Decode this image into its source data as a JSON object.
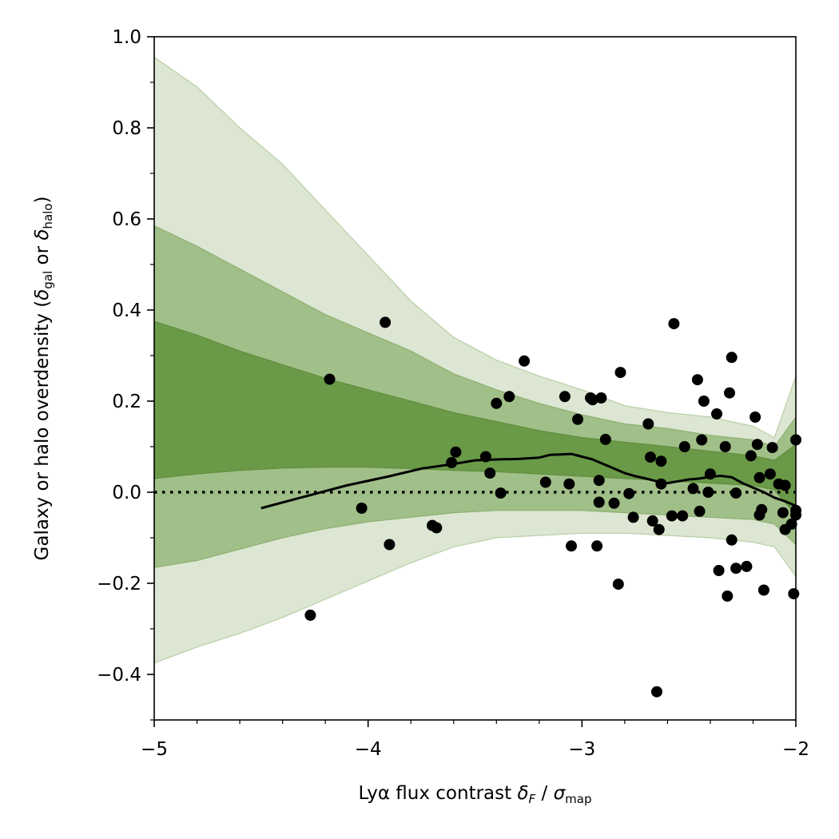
{
  "chart_data": {
    "type": "scatter",
    "xlim": [
      -5,
      -2
    ],
    "ylim": [
      -0.5,
      1.0
    ],
    "xticks": [
      -5,
      -4,
      -3,
      -2
    ],
    "xtick_labels": [
      "−5",
      "−4",
      "−3",
      "−2"
    ],
    "yticks": [
      -0.4,
      -0.2,
      0.0,
      0.2,
      0.4,
      0.6,
      0.8,
      1.0
    ],
    "ytick_labels": [
      "−0.4",
      "−0.2",
      "0.0",
      "0.2",
      "0.4",
      "0.6",
      "0.8",
      "1.0"
    ],
    "xlabel": {
      "prefix": "Lyα flux contrast ",
      "delta": "δ",
      "delta_sub": "F",
      "middle": " / ",
      "sigma": "σ",
      "sigma_sub": "map"
    },
    "ylabel": {
      "prefix": "Galaxy or halo overdensity (",
      "d1": "δ",
      "d1_sub": "gal",
      "or": " or ",
      "d2": "δ",
      "d2_sub": "halo",
      "suffix": ")"
    },
    "grid": false,
    "colors": {
      "band_outer": "#dce6d2",
      "band_middle": "#a1bf88",
      "band_inner": "#6a9a47",
      "band_edge": "#b9cfa6",
      "points": "#000000",
      "line": "#000000"
    },
    "bands": {
      "x": [
        -5.0,
        -4.8,
        -4.6,
        -4.4,
        -4.2,
        -4.0,
        -3.8,
        -3.6,
        -3.4,
        -3.2,
        -3.0,
        -2.8,
        -2.6,
        -2.4,
        -2.2,
        -2.1,
        -2.0
      ],
      "outer_upper": [
        0.955,
        0.89,
        0.8,
        0.72,
        0.62,
        0.52,
        0.42,
        0.34,
        0.29,
        0.255,
        0.225,
        0.19,
        0.175,
        0.165,
        0.145,
        0.12,
        0.255
      ],
      "outer_lower": [
        -0.375,
        -0.34,
        -0.31,
        -0.275,
        -0.235,
        -0.195,
        -0.155,
        -0.12,
        -0.1,
        -0.095,
        -0.09,
        -0.09,
        -0.095,
        -0.1,
        -0.11,
        -0.12,
        -0.185
      ],
      "middle_upper": [
        0.585,
        0.54,
        0.49,
        0.44,
        0.39,
        0.35,
        0.31,
        0.26,
        0.225,
        0.195,
        0.17,
        0.15,
        0.14,
        0.125,
        0.115,
        0.1,
        0.165
      ],
      "middle_lower": [
        -0.165,
        -0.15,
        -0.125,
        -0.1,
        -0.08,
        -0.065,
        -0.055,
        -0.045,
        -0.04,
        -0.04,
        -0.04,
        -0.045,
        -0.05,
        -0.055,
        -0.06,
        -0.07,
        -0.115
      ],
      "inner_upper": [
        0.375,
        0.345,
        0.31,
        0.28,
        0.25,
        0.225,
        0.2,
        0.175,
        0.155,
        0.135,
        0.12,
        0.11,
        0.1,
        0.09,
        0.08,
        0.07,
        0.105
      ],
      "inner_lower": [
        0.03,
        0.04,
        0.048,
        0.053,
        0.055,
        0.055,
        0.052,
        0.048,
        0.045,
        0.04,
        0.035,
        0.03,
        0.025,
        0.02,
        0.015,
        0.005,
        -0.05
      ]
    },
    "series": [
      {
        "type": "line",
        "x": [
          -4.5,
          -4.3,
          -4.1,
          -3.9,
          -3.75,
          -3.6,
          -3.5,
          -3.4,
          -3.3,
          -3.2,
          -3.15,
          -3.1,
          -3.05,
          -3.0,
          -2.95,
          -2.9,
          -2.85,
          -2.8,
          -2.75,
          -2.7,
          -2.65,
          -2.6,
          -2.55,
          -2.5,
          -2.45,
          -2.4,
          -2.35,
          -2.3,
          -2.25,
          -2.2,
          -2.15,
          -2.1,
          -2.05,
          -2.0
        ],
        "y": [
          -0.035,
          -0.01,
          0.015,
          0.035,
          0.052,
          0.062,
          0.07,
          0.072,
          0.073,
          0.076,
          0.082,
          0.083,
          0.084,
          0.078,
          0.072,
          0.062,
          0.052,
          0.042,
          0.035,
          0.03,
          0.024,
          0.02,
          0.024,
          0.028,
          0.03,
          0.034,
          0.036,
          0.033,
          0.02,
          0.01,
          0.0,
          -0.012,
          -0.02,
          -0.03
        ]
      },
      {
        "type": "hline",
        "y": 0.0,
        "style": "dotted"
      },
      {
        "type": "scatter",
        "points": [
          [
            -4.27,
            -0.27
          ],
          [
            -4.18,
            0.248
          ],
          [
            -4.03,
            -0.035
          ],
          [
            -3.92,
            0.373
          ],
          [
            -3.9,
            -0.115
          ],
          [
            -3.7,
            -0.073
          ],
          [
            -3.68,
            -0.078
          ],
          [
            -3.61,
            0.065
          ],
          [
            -3.59,
            0.088
          ],
          [
            -3.45,
            0.078
          ],
          [
            -3.43,
            0.042
          ],
          [
            -3.4,
            0.195
          ],
          [
            -3.38,
            -0.002
          ],
          [
            -3.34,
            0.21
          ],
          [
            -3.27,
            0.288
          ],
          [
            -3.17,
            0.022
          ],
          [
            -3.08,
            0.21
          ],
          [
            -3.06,
            0.018
          ],
          [
            -3.05,
            -0.118
          ],
          [
            -3.02,
            0.16
          ],
          [
            -2.96,
            0.207
          ],
          [
            -2.95,
            0.203
          ],
          [
            -2.93,
            -0.118
          ],
          [
            -2.92,
            -0.022
          ],
          [
            -2.92,
            0.026
          ],
          [
            -2.91,
            0.207
          ],
          [
            -2.89,
            0.116
          ],
          [
            -2.85,
            -0.024
          ],
          [
            -2.83,
            -0.202
          ],
          [
            -2.82,
            0.263
          ],
          [
            -2.78,
            -0.003
          ],
          [
            -2.76,
            -0.055
          ],
          [
            -2.69,
            0.15
          ],
          [
            -2.68,
            0.077
          ],
          [
            -2.67,
            -0.063
          ],
          [
            -2.65,
            -0.438
          ],
          [
            -2.64,
            -0.082
          ],
          [
            -2.63,
            0.068
          ],
          [
            -2.63,
            0.018
          ],
          [
            -2.58,
            -0.052
          ],
          [
            -2.57,
            0.37
          ],
          [
            -2.53,
            -0.052
          ],
          [
            -2.52,
            0.1
          ],
          [
            -2.48,
            0.008
          ],
          [
            -2.46,
            0.247
          ],
          [
            -2.45,
            -0.042
          ],
          [
            -2.44,
            0.115
          ],
          [
            -2.43,
            0.2
          ],
          [
            -2.41,
            0.0
          ],
          [
            -2.4,
            0.04
          ],
          [
            -2.37,
            0.172
          ],
          [
            -2.36,
            -0.172
          ],
          [
            -2.33,
            0.1
          ],
          [
            -2.32,
            -0.228
          ],
          [
            -2.31,
            0.218
          ],
          [
            -2.3,
            0.296
          ],
          [
            -2.3,
            -0.105
          ],
          [
            -2.28,
            -0.167
          ],
          [
            -2.28,
            -0.002
          ],
          [
            -2.23,
            -0.163
          ],
          [
            -2.21,
            0.08
          ],
          [
            -2.19,
            0.165
          ],
          [
            -2.18,
            0.105
          ],
          [
            -2.17,
            0.032
          ],
          [
            -2.17,
            -0.05
          ],
          [
            -2.16,
            -0.038
          ],
          [
            -2.15,
            -0.215
          ],
          [
            -2.12,
            0.04
          ],
          [
            -2.11,
            0.098
          ],
          [
            -2.08,
            0.018
          ],
          [
            -2.06,
            -0.045
          ],
          [
            -2.05,
            0.015
          ],
          [
            -2.05,
            -0.082
          ],
          [
            -2.02,
            -0.07
          ],
          [
            -2.01,
            -0.223
          ],
          [
            -2.0,
            0.115
          ],
          [
            -2.0,
            -0.05
          ],
          [
            -2.0,
            -0.04
          ]
        ]
      }
    ]
  }
}
